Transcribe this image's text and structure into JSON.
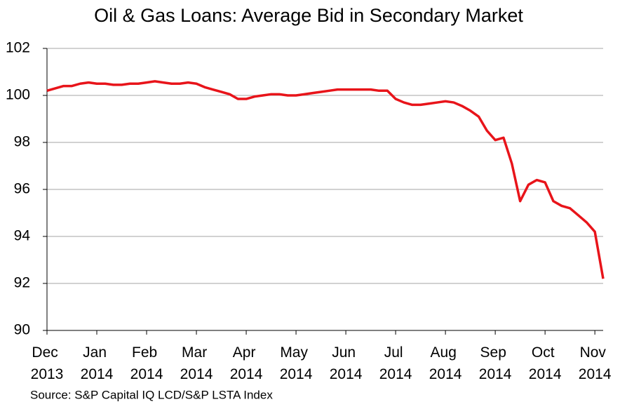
{
  "chart_data": {
    "type": "line",
    "title": "Oil & Gas Loans: Average Bid in Secondary Market",
    "source": "Source: S&P Capital IQ LCD/S&P LSTA Index",
    "categories": [
      "Dec 2013",
      null,
      null,
      null,
      null,
      null,
      "Jan 2014",
      null,
      null,
      null,
      null,
      null,
      "Feb 2014",
      null,
      null,
      null,
      null,
      null,
      "Mar 2014",
      null,
      null,
      null,
      null,
      null,
      "Apr 2014",
      null,
      null,
      null,
      null,
      null,
      "May 2014",
      null,
      null,
      null,
      null,
      null,
      "Jun 2014",
      null,
      null,
      null,
      null,
      null,
      "Jul 2014",
      null,
      null,
      null,
      null,
      null,
      "Aug 2014",
      null,
      null,
      null,
      null,
      null,
      "Sep 2014",
      null,
      null,
      null,
      null,
      null,
      "Oct 2014",
      null,
      null,
      null,
      null,
      null,
      "Nov 2014",
      null
    ],
    "series": [
      {
        "name": "Average Bid",
        "color": "#e8141a",
        "values": [
          100.2,
          100.3,
          100.4,
          100.4,
          100.5,
          100.55,
          100.5,
          100.5,
          100.45,
          100.45,
          100.5,
          100.5,
          100.55,
          100.6,
          100.55,
          100.5,
          100.5,
          100.55,
          100.5,
          100.35,
          100.25,
          100.15,
          100.05,
          99.85,
          99.85,
          99.95,
          100.0,
          100.05,
          100.05,
          100.0,
          100.0,
          100.05,
          100.1,
          100.15,
          100.2,
          100.25,
          100.25,
          100.25,
          100.25,
          100.25,
          100.2,
          100.2,
          99.85,
          99.7,
          99.6,
          99.6,
          99.65,
          99.7,
          99.75,
          99.7,
          99.55,
          99.35,
          99.1,
          98.5,
          98.1,
          98.2,
          97.1,
          95.5,
          96.2,
          96.4,
          96.3,
          95.5,
          95.3,
          95.2,
          94.9,
          94.6,
          94.2,
          92.2
        ]
      }
    ],
    "ylim": [
      90,
      102
    ],
    "yticks": [
      90,
      92,
      94,
      96,
      98,
      100,
      102
    ],
    "grid": true
  }
}
